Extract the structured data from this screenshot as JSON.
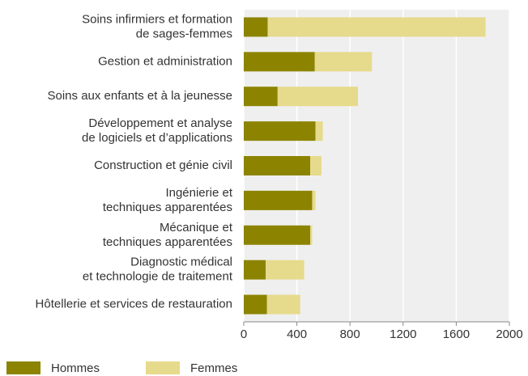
{
  "chart_data": {
    "type": "stacked-barh",
    "categories": [
      "Soins infirmiers et formation\nde sages-femmes",
      "Gestion et administration",
      "Soins aux enfants et à la jeunesse",
      "Développement et analyse\nde logiciels et d’applications",
      "Construction et génie civil",
      "Ingénierie et\ntechniques apparentées",
      "Mécanique et\ntechniques apparentées",
      "Diagnostic médical\net technologie de traitement",
      "Hôtellerie et services de restauration"
    ],
    "series": [
      {
        "name": "Hommes",
        "color": "#8c8400",
        "values": [
          180,
          535,
          255,
          540,
          500,
          515,
          500,
          165,
          175
        ]
      },
      {
        "name": "Femmes",
        "color": "#e6da8c",
        "values": [
          1640,
          430,
          605,
          55,
          85,
          25,
          15,
          290,
          250
        ]
      }
    ],
    "xlim": [
      0,
      2000
    ],
    "xticks": [
      0,
      400,
      800,
      1200,
      1600,
      2000
    ],
    "grid": true,
    "legend": "bottom"
  }
}
